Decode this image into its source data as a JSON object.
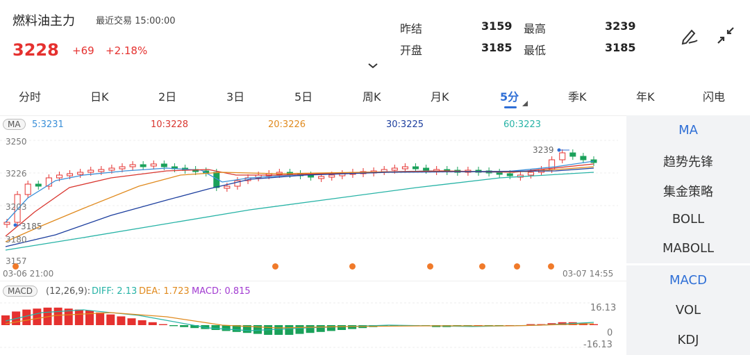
{
  "header": {
    "title": "燃料油主力",
    "latest_label": "最近交易",
    "latest_time": "15:00:00",
    "price": "3228",
    "change": "+69",
    "change_pct": "+2.18%"
  },
  "quote": {
    "prev_settle_label": "昨结",
    "prev_settle": "3159",
    "high_label": "最高",
    "high": "3239",
    "open_label": "开盘",
    "open": "3185",
    "low_label": "最低",
    "low": "3185"
  },
  "tabs": [
    "分时",
    "日K",
    "2日",
    "3日",
    "5日",
    "周K",
    "月K",
    "5分",
    "季K",
    "年K",
    "闪电"
  ],
  "active_tab": "5分",
  "ma": {
    "badge": "MA",
    "ma5": "5:3231",
    "ma10": "10:3228",
    "ma20": "20:3226",
    "ma30": "30:3225",
    "ma60": "60:3223",
    "colors": {
      "ma5": "#3a8fd8",
      "ma10": "#d9362f",
      "ma20": "#e08a1e",
      "ma30": "#1c3e9e",
      "ma60": "#27b3a6"
    }
  },
  "price_axis": {
    "ticks": [
      "3250",
      "3226",
      "3203",
      "3180",
      "3157"
    ],
    "high_marker": "3239",
    "low_marker": "3185"
  },
  "time_axis": {
    "start": "03-06 21:00",
    "end": "03-07 14:55"
  },
  "macd": {
    "badge": "MACD",
    "params": "(12,26,9):",
    "diff": "DIFF: 2.13",
    "dea": "DEA: 1.723",
    "macd": "MACD: 0.815",
    "top": "16.13",
    "zero": "0",
    "bottom": "-16.13",
    "colors": {
      "diff": "#27b3a6",
      "dea": "#e08a1e",
      "macd": "#a23bd1"
    }
  },
  "sidebar": {
    "main_indicators": [
      "MA",
      "趋势先锋",
      "集金策略",
      "BOLL",
      "MABOLL"
    ],
    "sub_indicators": [
      "MACD",
      "VOL",
      "KDJ"
    ]
  },
  "colors": {
    "up": "#e5312f",
    "down": "#1aa15a",
    "accent": "#2f6fd6"
  }
}
